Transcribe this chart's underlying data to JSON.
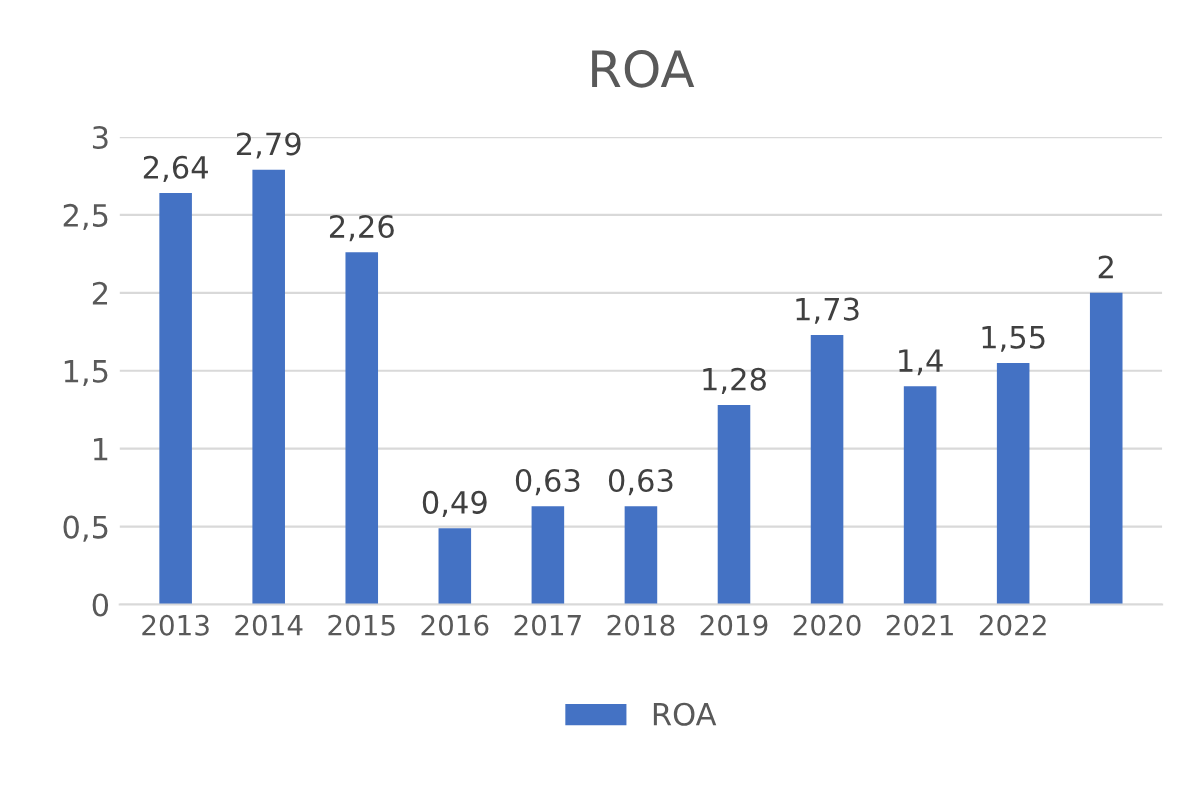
{
  "chart_data": {
    "type": "bar",
    "title": "ROA",
    "categories": [
      "2013",
      "2014",
      "2015",
      "2016",
      "2017",
      "2018",
      "2019",
      "2020",
      "2021",
      "2022",
      null
    ],
    "series": [
      {
        "name": "ROA",
        "color": "#4472c4",
        "values": [
          2.64,
          2.79,
          2.26,
          0.49,
          0.63,
          0.63,
          1.28,
          1.73,
          1.4,
          1.55,
          2
        ],
        "value_labels": [
          "2,64",
          "2,79",
          "2,26",
          "0,49",
          "0,63",
          "0,63",
          "1,28",
          "1,73",
          "1,4",
          "1,55",
          "2"
        ]
      }
    ],
    "ylim": [
      0,
      3
    ],
    "yticks": [
      0,
      {
        "value": 0.5,
        "label": "0,5"
      },
      1,
      {
        "value": 1.5,
        "label": "1,5"
      },
      2,
      {
        "value": 2.5,
        "label": "2,5"
      },
      3
    ],
    "grid": "y",
    "legend": "bottom"
  }
}
